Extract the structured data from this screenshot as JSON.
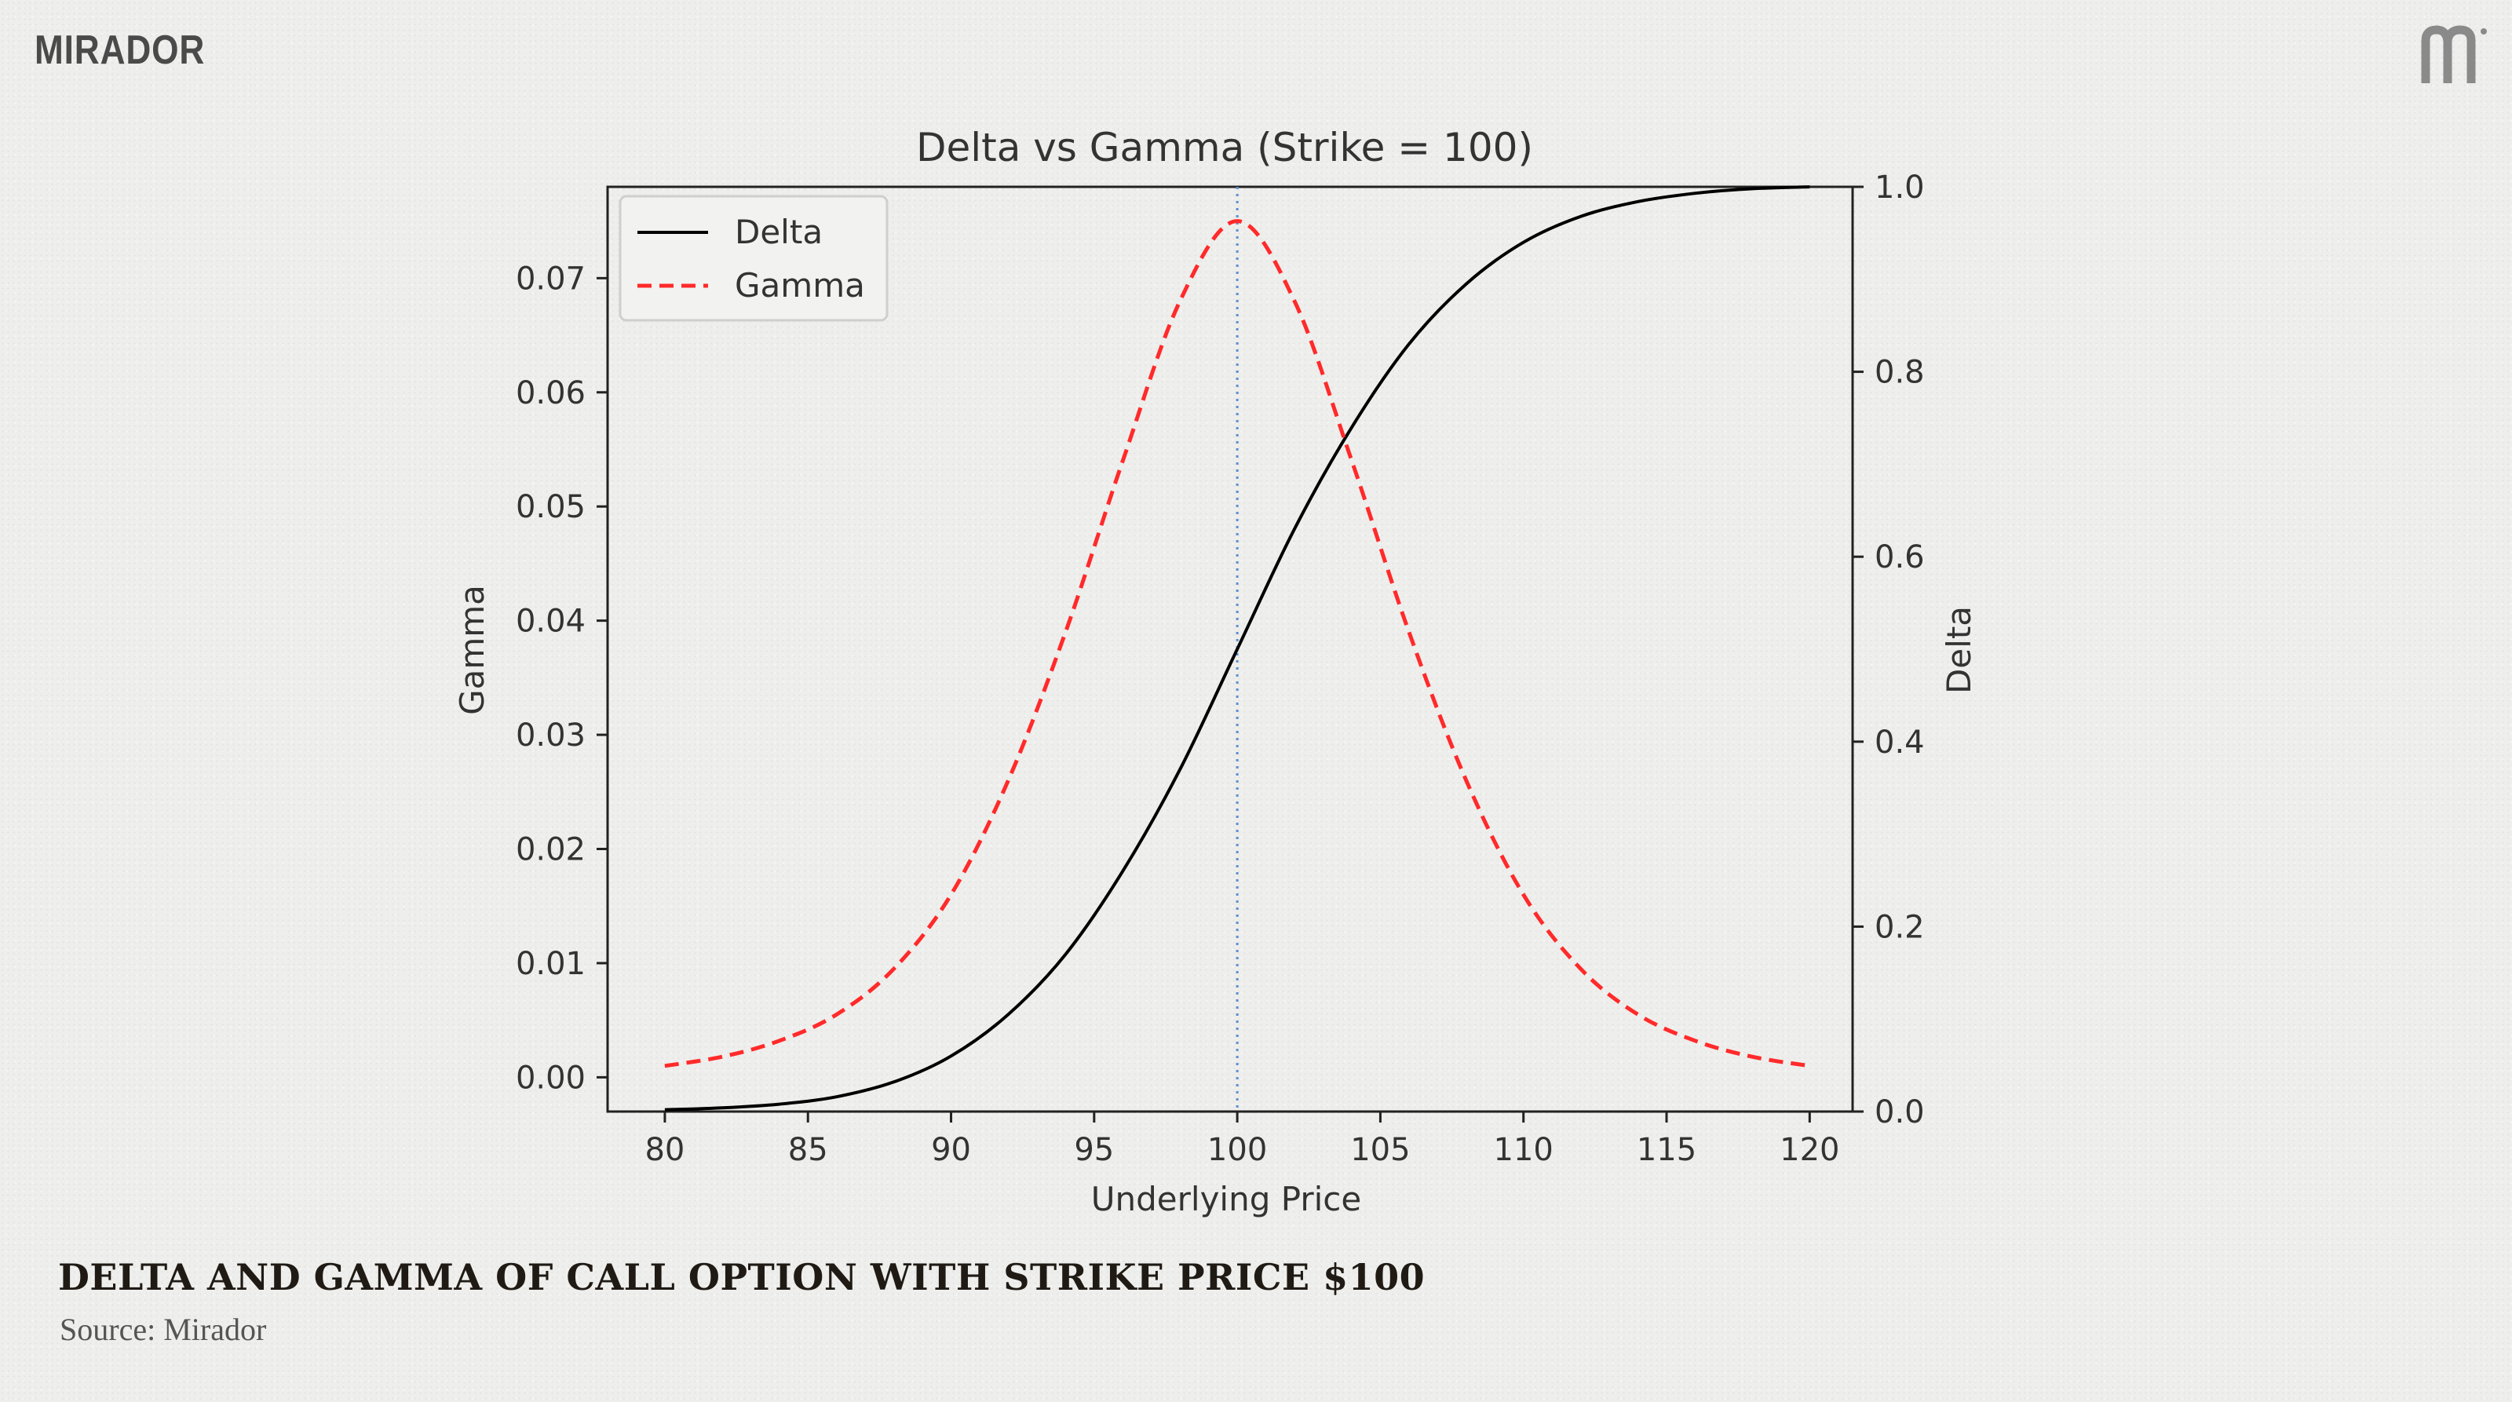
{
  "brand": {
    "name": "MIRADOR",
    "logo_icon": "mirador-m-logo-icon"
  },
  "caption": {
    "title": "DELTA AND GAMMA OF CALL OPTION WITH STRIKE PRICE $100",
    "source": "Source: Mirador"
  },
  "chart_data": {
    "type": "line",
    "title": "Delta vs Gamma (Strike = 100)",
    "xlabel": "Underlying Price",
    "ylabel_left": "Gamma",
    "ylabel_right": "Delta",
    "xlim": [
      78,
      121.5
    ],
    "ylim_left": [
      -0.003,
      0.078
    ],
    "ylim_right": [
      0.0,
      1.0
    ],
    "x_ticks": [
      80,
      85,
      90,
      95,
      100,
      105,
      110,
      115,
      120
    ],
    "y_ticks_left": [
      "0.00",
      "0.01",
      "0.02",
      "0.03",
      "0.04",
      "0.05",
      "0.06",
      "0.07"
    ],
    "y_ticks_right": [
      "0.0",
      "0.2",
      "0.4",
      "0.6",
      "0.8",
      "1.0"
    ],
    "legend": {
      "position": "top-left",
      "entries": [
        "Delta",
        "Gamma"
      ]
    },
    "reference_line": {
      "x": 100,
      "style": "dotted",
      "color": "#5b8fd0"
    },
    "series": [
      {
        "name": "Delta",
        "axis": "right",
        "color": "#000000",
        "style": "solid",
        "x": [
          80,
          82,
          84,
          86,
          88,
          90,
          92,
          94,
          96,
          98,
          100,
          102,
          104,
          106,
          108,
          110,
          112,
          114,
          116,
          118,
          120
        ],
        "values": [
          0.002,
          0.004,
          0.008,
          0.016,
          0.032,
          0.06,
          0.105,
          0.17,
          0.26,
          0.37,
          0.5,
          0.63,
          0.74,
          0.83,
          0.895,
          0.94,
          0.968,
          0.984,
          0.993,
          0.998,
          1.0
        ]
      },
      {
        "name": "Gamma",
        "axis": "left",
        "color": "#ff2a2a",
        "style": "dashed",
        "x": [
          80,
          82,
          84,
          86,
          88,
          90,
          92,
          94,
          96,
          98,
          100,
          102,
          104,
          106,
          108,
          110,
          112,
          114,
          116,
          118,
          120
        ],
        "values": [
          0.001,
          0.0018,
          0.0032,
          0.0055,
          0.0095,
          0.016,
          0.026,
          0.039,
          0.054,
          0.068,
          0.075,
          0.068,
          0.054,
          0.039,
          0.026,
          0.016,
          0.0095,
          0.0055,
          0.0032,
          0.0018,
          0.001
        ]
      }
    ]
  }
}
